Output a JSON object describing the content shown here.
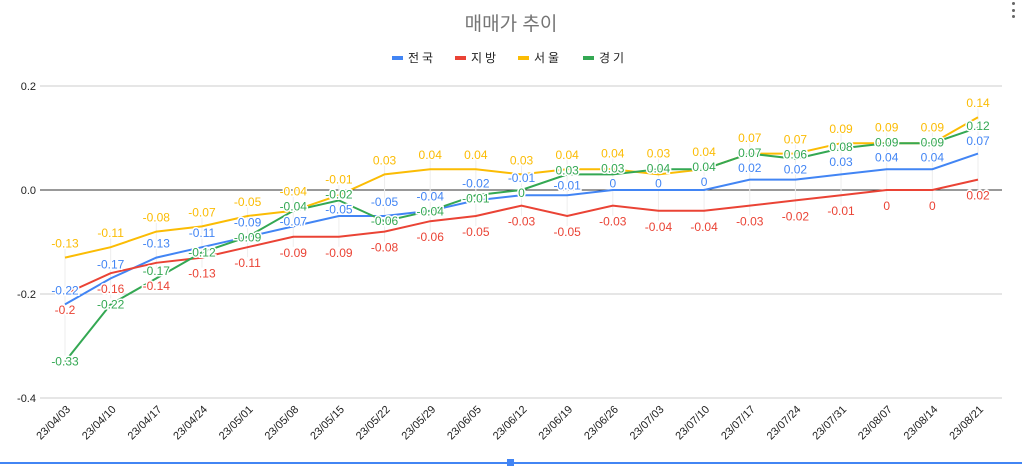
{
  "chart_data": {
    "type": "line",
    "title": "매매가 추이",
    "legend_position": "top",
    "grid": true,
    "ylim": [
      -0.4,
      0.2
    ],
    "yticks": [
      "0.2",
      "0.0",
      "-0.2",
      "-0.4"
    ],
    "ytick_values": [
      0.2,
      0.0,
      -0.2,
      -0.4
    ],
    "categories": [
      "23/04/03",
      "23/04/10",
      "23/04/17",
      "23/04/24",
      "23/05/01",
      "23/05/08",
      "23/05/15",
      "23/05/22",
      "23/05/29",
      "23/06/05",
      "23/06/12",
      "23/06/19",
      "23/06/26",
      "23/07/03",
      "23/07/10",
      "23/07/17",
      "23/07/24",
      "23/07/31",
      "23/08/07",
      "23/08/14",
      "23/08/21"
    ],
    "series": [
      {
        "name": "전국",
        "color": "#4285f4",
        "label_pos": "above",
        "values": [
          -0.22,
          -0.17,
          -0.13,
          -0.11,
          -0.09,
          -0.07,
          -0.05,
          -0.05,
          -0.04,
          -0.02,
          -0.01,
          -0.01,
          0,
          0,
          0,
          0.02,
          0.02,
          0.03,
          0.04,
          0.04,
          0.07
        ]
      },
      {
        "name": "지방",
        "color": "#ea4335",
        "label_pos": "below",
        "values": [
          -0.2,
          -0.16,
          -0.14,
          -0.13,
          -0.11,
          -0.09,
          -0.09,
          -0.08,
          -0.06,
          -0.05,
          -0.03,
          -0.05,
          -0.03,
          -0.04,
          -0.04,
          -0.03,
          -0.02,
          -0.01,
          0,
          0,
          0.02
        ]
      },
      {
        "name": "서울",
        "color": "#fbbc04",
        "label_pos": "above",
        "values": [
          -0.13,
          -0.11,
          -0.08,
          -0.07,
          -0.05,
          -0.04,
          -0.01,
          0.03,
          0.04,
          0.04,
          0.03,
          0.04,
          0.04,
          0.03,
          0.04,
          0.07,
          0.07,
          0.09,
          0.09,
          0.09,
          0.14
        ]
      },
      {
        "name": "경기",
        "color": "#34a853",
        "label_pos": "center",
        "values": [
          -0.33,
          -0.22,
          -0.17,
          -0.12,
          -0.09,
          -0.04,
          -0.02,
          -0.06,
          -0.04,
          -0.01,
          0,
          0.03,
          0.03,
          0.04,
          0.04,
          0.07,
          0.06,
          0.08,
          0.09,
          0.09,
          0.12
        ]
      }
    ]
  }
}
